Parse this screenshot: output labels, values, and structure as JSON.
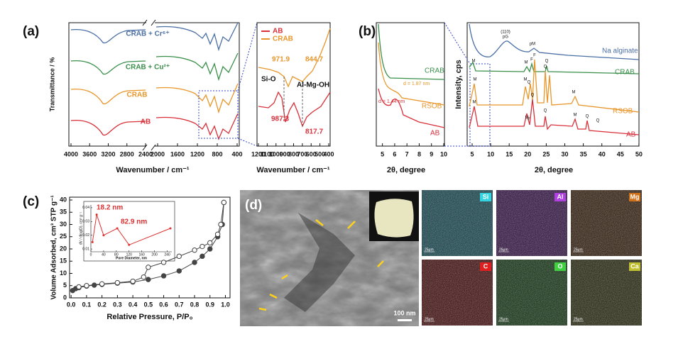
{
  "panels": {
    "a": {
      "label": "(a)",
      "y_label": "Transmittance / %",
      "x_label": "Wavenumber / cm⁻¹",
      "xticks": [
        4000,
        3600,
        3200,
        2800,
        2400,
        2000,
        1600,
        1200,
        800,
        400
      ],
      "series_labels": [
        "CRAB + Cr⁶⁺",
        "CRAB + Cu²⁺",
        "CRAB",
        "AB"
      ]
    },
    "a_zoom": {
      "x_label": "Wavenumber / cm⁻¹",
      "xticks": [
        1200,
        1100,
        1000,
        900,
        800,
        700,
        600,
        500,
        400
      ],
      "legend": [
        "AB",
        "CRAB"
      ],
      "annotations": [
        "971.9",
        "844.7",
        "Si-O",
        "Al-Mg-OH",
        "987.3",
        "817.7"
      ]
    },
    "b": {
      "label": "(b)",
      "left": {
        "x_label": "2θ, degree",
        "xticks": [
          5,
          6,
          7,
          8,
          9,
          10
        ],
        "series_labels": [
          "CRAB",
          "RSOB",
          "AB"
        ],
        "annotations": [
          "d = 1.87 nm",
          "d = 1.44 nm"
        ]
      },
      "right": {
        "y_label": "Intensity, cps",
        "x_label": "2θ, degree",
        "xticks": [
          5,
          10,
          15,
          20,
          25,
          30,
          35,
          40,
          45,
          50
        ],
        "series_labels": [
          "Na alginate",
          "CRAB",
          "RSOB",
          "AB"
        ],
        "peaks": [
          "(110)",
          "pG",
          "pM",
          "M",
          "M",
          "F",
          "Q",
          "M",
          "M",
          "Q",
          "F",
          "Q",
          "M",
          "M",
          "M",
          "Q",
          "F",
          "Q",
          "M",
          "Q",
          "Q"
        ]
      }
    },
    "d": {
      "label": "(d)",
      "scale_bar": "100 nm",
      "maps": [
        {
          "element": "Si",
          "scale": "25μm"
        },
        {
          "element": "Al",
          "scale": "25μm"
        },
        {
          "element": "Mg",
          "scale": "25μm"
        },
        {
          "element": "C",
          "scale": "25μm"
        },
        {
          "element": "O",
          "scale": "25μm"
        },
        {
          "element": "Ca",
          "scale": "25μm"
        }
      ]
    }
  },
  "chart_data": [
    {
      "type": "line",
      "label": "(c)",
      "x_label": "Relative Pressure, P/P₀",
      "y_label": "Volume Adsorbed, cm³ STP g⁻¹",
      "xlim": [
        -0.01,
        1.03
      ],
      "ylim": [
        0,
        40
      ],
      "xticks": [
        {
          "value": 0,
          "label": "0.0"
        },
        0.1,
        0.2,
        0.3,
        0.4,
        0.5,
        0.6,
        0.7,
        0.8,
        0.9,
        {
          "value": 1,
          "label": "1.0"
        }
      ],
      "yticks": [
        0,
        5,
        10,
        15,
        20,
        25,
        30,
        35,
        40
      ],
      "series": [
        {
          "color": "#444444",
          "x": [
            0.01,
            0.03,
            0.05,
            0.1,
            0.15,
            0.2,
            0.3,
            0.4,
            0.5,
            0.6,
            0.7,
            0.8,
            0.85,
            0.9,
            0.95,
            0.98,
            0.99
          ],
          "values": [
            3,
            3.8,
            4.2,
            4.8,
            5.2,
            5.5,
            6,
            6.5,
            7.5,
            9,
            11,
            14.5,
            17,
            20,
            25,
            30,
            39
          ]
        },
        {
          "color": "#444444",
          "x": [
            0.99,
            0.97,
            0.95,
            0.9,
            0.85,
            0.8,
            0.7,
            0.6,
            0.5,
            0.47,
            0.4,
            0.3,
            0.2,
            0.1,
            0.05
          ],
          "values": [
            39,
            30,
            26,
            22.5,
            21,
            19.5,
            17,
            14.5,
            12.5,
            8.5,
            6.8,
            6.2,
            5.7,
            5,
            4.5
          ]
        }
      ]
    },
    {
      "type": "line",
      "x_label": "Pore Diameter, nm",
      "y_label": "dV / dlog(D), cm³ g⁻¹",
      "xlim": [
        0,
        250
      ],
      "ylim": [
        0.008,
        0.042
      ],
      "xticks": [
        0,
        40,
        80,
        120,
        160,
        200,
        240
      ],
      "yticks": [
        0.01,
        0.02,
        0.03,
        0.04
      ],
      "annotations": [
        "18.2 nm",
        "82.9 nm"
      ],
      "series": [
        {
          "color": "#e03030",
          "x": [
            5,
            18.2,
            40,
            82.9,
            120,
            250
          ],
          "values": [
            0.015,
            0.035,
            0.02,
            0.025,
            0.013,
            0.025
          ]
        }
      ]
    }
  ]
}
